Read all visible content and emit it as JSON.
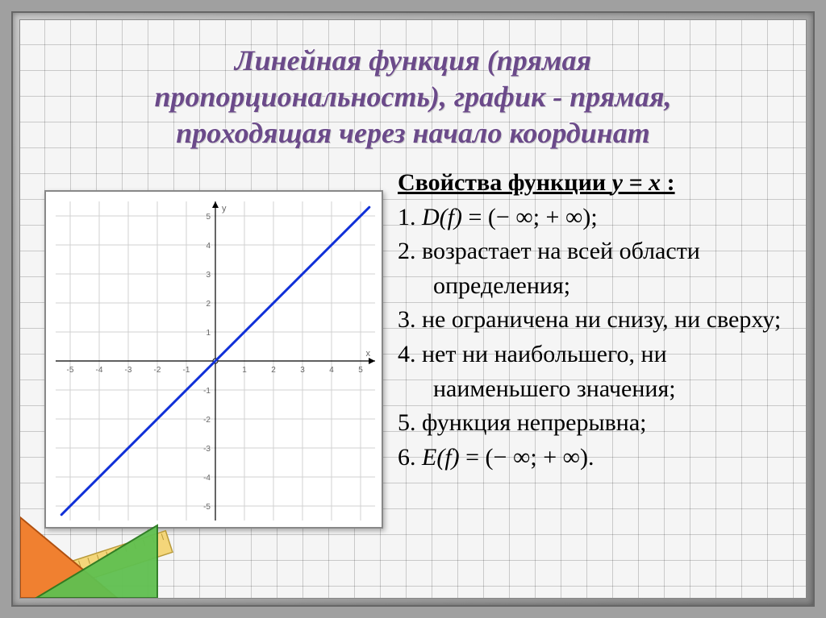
{
  "title_lines": [
    "Линейная функция (прямая",
    "пропорциональность), график - прямая,",
    "проходящая через начало координат"
  ],
  "properties_heading_prefix": "Свойства функции ",
  "properties_heading_func": "y = x",
  "properties_heading_suffix": "  :",
  "properties": [
    {
      "n": "1.",
      "html": "<span class='math-i'>D(f)</span> = (− ∞; + ∞);"
    },
    {
      "n": "2.",
      "html": "возрастает на всей области определения;"
    },
    {
      "n": "3.",
      "html": "не ограничена ни снизу, ни сверху;"
    },
    {
      "n": "4.",
      "html": "нет ни наибольшего, ни наименьшего значения;"
    },
    {
      "n": "5.",
      "html": "функция непрерывна;"
    },
    {
      "n": "6.",
      "html": "<span class='math-i'>E(f)</span> = (− ∞; + ∞)."
    }
  ],
  "chart": {
    "type": "line",
    "xlim": [
      -5.5,
      5.5
    ],
    "ylim": [
      -5.5,
      5.5
    ],
    "xticks": [
      -5,
      -4,
      -3,
      -2,
      -1,
      1,
      2,
      3,
      4,
      5
    ],
    "yticks": [
      -5,
      -4,
      -3,
      -2,
      -1,
      1,
      2,
      3,
      4,
      5
    ],
    "grid_color": "#d0d0d0",
    "axis_color": "#000000",
    "axis_label_color": "#666666",
    "axis_label_fontsize": 10,
    "background_color": "#ffffff",
    "line": {
      "points": [
        [
          -5.3,
          -5.3
        ],
        [
          5.3,
          5.3
        ]
      ],
      "color": "#1030d8",
      "width": 3
    },
    "origin_circle": {
      "r": 3,
      "stroke": "#000000",
      "fill": "#ffffff"
    },
    "x_axis_label": "x",
    "y_axis_label": "y"
  },
  "decor": {
    "ruler_color": "#f4d67a",
    "ruler_border": "#b89a3a",
    "triangle1_fill": "#f08030",
    "triangle1_border": "#b05010",
    "triangle2_fill": "#60c050",
    "triangle2_border": "#2a7a20"
  }
}
